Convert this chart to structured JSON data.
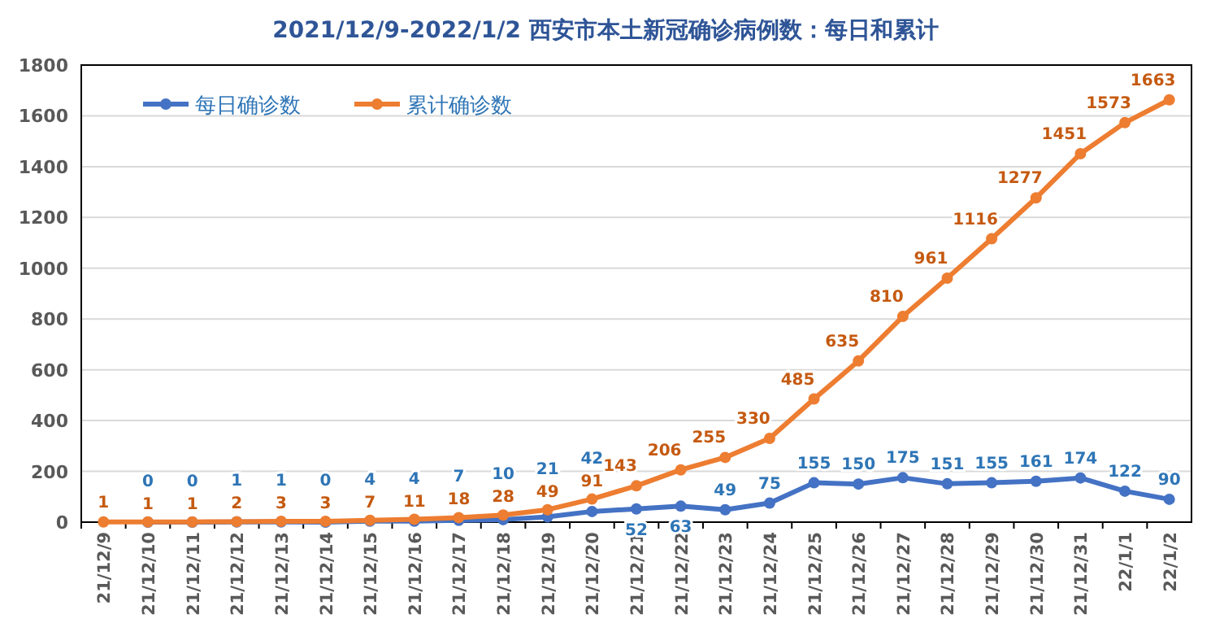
{
  "chart_data": {
    "type": "line",
    "title": "2021/12/9-2022/1/2 西安市本土新冠确诊病例数：每日和累计",
    "categories": [
      "21/12/9",
      "21/12/10",
      "21/12/11",
      "21/12/12",
      "21/12/13",
      "21/12/14",
      "21/12/15",
      "21/12/16",
      "21/12/17",
      "21/12/18",
      "21/12/19",
      "21/12/20",
      "21/12/21",
      "21/12/22",
      "21/12/23",
      "21/12/24",
      "21/12/25",
      "21/12/26",
      "21/12/27",
      "21/12/28",
      "21/12/29",
      "21/12/30",
      "21/12/31",
      "22/1/1",
      "22/1/2"
    ],
    "series": [
      {
        "name": "每日确诊数",
        "color": "#4472c4",
        "values": [
          null,
          0,
          0,
          1,
          1,
          0,
          4,
          4,
          7,
          10,
          21,
          42,
          52,
          63,
          49,
          75,
          155,
          150,
          175,
          151,
          155,
          161,
          174,
          122,
          90
        ],
        "value_labels": [
          null,
          "0",
          "0",
          "1",
          "1",
          "0",
          "4",
          "4",
          "7",
          "10",
          "21",
          "42",
          "52",
          "63",
          "49",
          "75",
          "155",
          "150",
          "175",
          "151",
          "155",
          "161",
          "174",
          "122",
          "90"
        ]
      },
      {
        "name": "累计确诊数",
        "color": "#ed7d31",
        "values": [
          1,
          1,
          1,
          2,
          3,
          3,
          7,
          11,
          18,
          28,
          49,
          91,
          143,
          206,
          255,
          330,
          485,
          635,
          810,
          961,
          1116,
          1277,
          1451,
          1573,
          1663
        ],
        "value_labels": [
          "1",
          "1",
          "1",
          "2",
          "3",
          "3",
          "7",
          "11",
          "18",
          "28",
          "49",
          "91",
          "143",
          "206",
          "255",
          "330",
          "485",
          "635",
          "810",
          "961",
          "1116",
          "1277",
          "1451",
          "1573",
          "1663"
        ]
      }
    ],
    "ylim": [
      0,
      1800
    ],
    "yticks": [
      0,
      200,
      400,
      600,
      800,
      1000,
      1200,
      1400,
      1600,
      1800
    ],
    "grid": "y",
    "legend": "top left",
    "marker": "circle",
    "line_style": "solid"
  }
}
